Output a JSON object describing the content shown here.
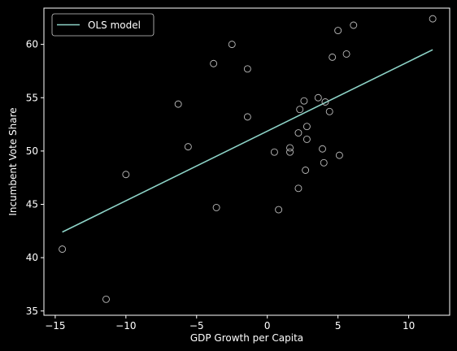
{
  "chart_data": {
    "type": "scatter",
    "title": "",
    "xlabel": "GDP Growth per Capita",
    "ylabel": "Incumbent Vote Share",
    "xlim": [
      -15.8,
      12.9
    ],
    "ylim": [
      34.6,
      63.4
    ],
    "xticks": [
      -15,
      -10,
      -5,
      0,
      5,
      10
    ],
    "yticks": [
      35,
      40,
      45,
      50,
      55,
      60
    ],
    "grid": false,
    "legend": {
      "position": "top-left",
      "entries": [
        "OLS model"
      ]
    },
    "series": [
      {
        "name": "OLS model",
        "kind": "line",
        "color": "#8dd3c7",
        "x": [
          -14.5,
          11.7
        ],
        "y": [
          42.4,
          59.5
        ]
      },
      {
        "kind": "scatter",
        "marker_edge": "#bbbbbb",
        "x": [
          -14.5,
          -11.4,
          -10.0,
          -6.3,
          -5.6,
          -3.6,
          -3.8,
          -2.5,
          -1.4,
          -1.4,
          0.5,
          0.8,
          1.6,
          1.6,
          2.2,
          2.2,
          2.3,
          2.6,
          2.7,
          2.8,
          2.8,
          3.6,
          3.9,
          4.0,
          4.1,
          4.4,
          4.6,
          5.0,
          5.1,
          5.6,
          6.1,
          11.7
        ],
        "y": [
          40.8,
          36.1,
          47.8,
          54.4,
          50.4,
          44.7,
          58.2,
          60.0,
          57.7,
          53.2,
          49.9,
          44.5,
          50.3,
          49.9,
          51.7,
          46.5,
          53.9,
          54.7,
          48.2,
          51.1,
          52.3,
          55.0,
          50.2,
          48.9,
          54.6,
          53.7,
          58.8,
          61.3,
          49.6,
          59.1,
          61.8,
          62.4
        ]
      }
    ]
  }
}
